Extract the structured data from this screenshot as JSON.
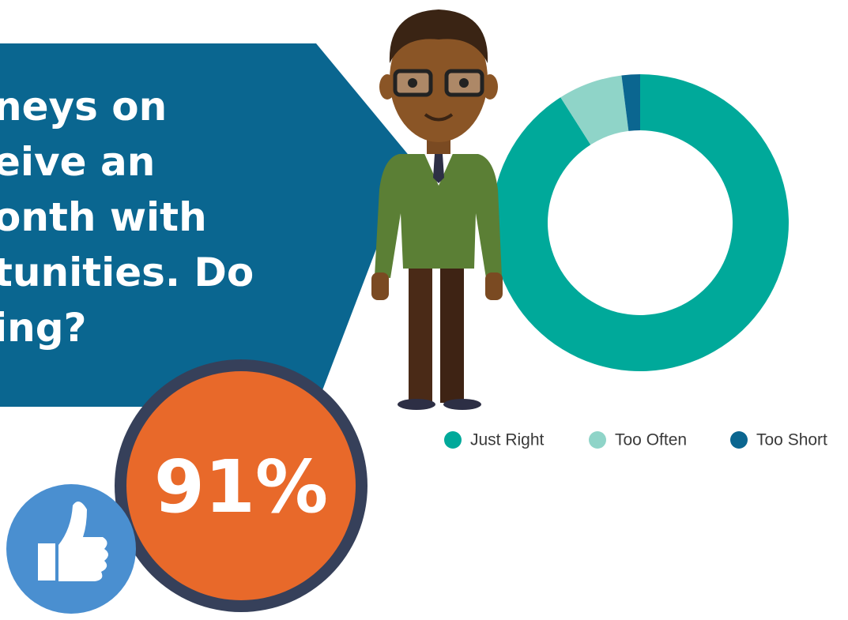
{
  "headline": [
    "neys on",
    "eive an",
    "onth with",
    "tunities. Do",
    "ing?"
  ],
  "badge": "91%",
  "chart_data": {
    "type": "donut",
    "categories": [
      "Just Right",
      "Too Often",
      "Too Short"
    ],
    "values": [
      91,
      7,
      2
    ],
    "colors": [
      "#00a99a",
      "#8fd4c8",
      "#0b6690"
    ]
  }
}
